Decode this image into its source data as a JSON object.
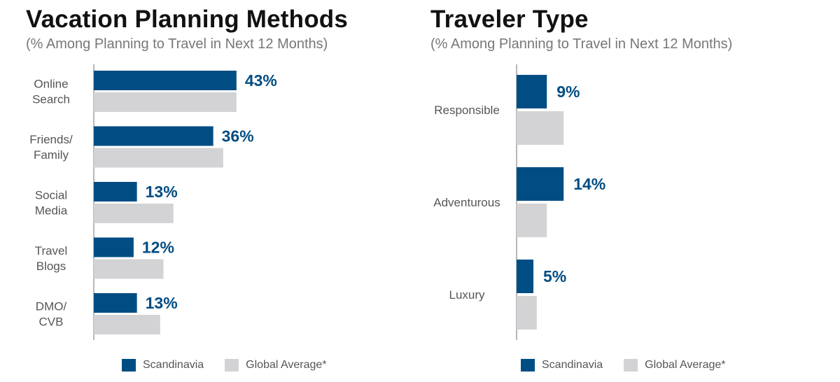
{
  "colors": {
    "scandinavia": "#004d83",
    "global": "#d3d3d5",
    "axis": "#888888",
    "category_text": "#555555"
  },
  "legend": {
    "series_a": "Scandinavia",
    "series_b": "Global Average*"
  },
  "chart_data": [
    {
      "type": "bar",
      "orientation": "horizontal",
      "title": "Vacation Planning Methods",
      "subtitle": "(% Among Planning to Travel in Next 12 Months)",
      "categories": [
        [
          "Online",
          "Search"
        ],
        [
          "Friends/",
          "Family"
        ],
        [
          "Social",
          "Media"
        ],
        [
          "Travel",
          "Blogs"
        ],
        [
          "DMO/",
          "CVB"
        ]
      ],
      "series": [
        {
          "name": "Scandinavia",
          "values": [
            43,
            36,
            13,
            12,
            13
          ],
          "labels": [
            "43%",
            "36%",
            "13%",
            "12%",
            "13%"
          ]
        },
        {
          "name": "Global Average*",
          "values": [
            43,
            39,
            24,
            21,
            20
          ]
        }
      ],
      "xlim": [
        0,
        100
      ],
      "grid": false,
      "legend_position": "bottom"
    },
    {
      "type": "bar",
      "orientation": "horizontal",
      "title": "Traveler Type",
      "subtitle": "(% Among Planning to Travel in Next 12 Months)",
      "categories": [
        [
          "Responsible"
        ],
        [
          "Adventurous"
        ],
        [
          "Luxury"
        ]
      ],
      "series": [
        {
          "name": "Scandinavia",
          "values": [
            9,
            14,
            5
          ],
          "labels": [
            "9%",
            "14%",
            "5%"
          ]
        },
        {
          "name": "Global Average*",
          "values": [
            14,
            9,
            6
          ]
        }
      ],
      "xlim": [
        0,
        100
      ],
      "grid": false,
      "legend_position": "bottom"
    }
  ]
}
